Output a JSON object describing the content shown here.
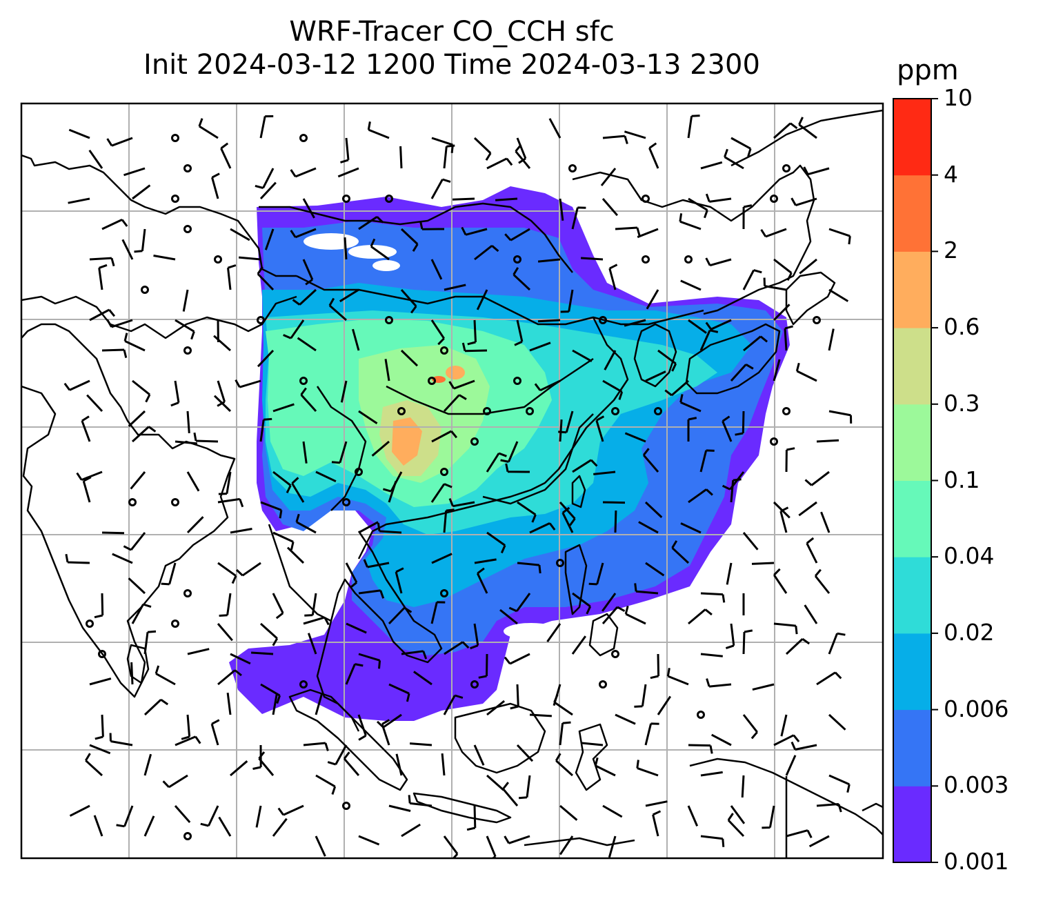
{
  "title": {
    "line1": "WRF-Tracer CO_CCH sfc",
    "line2": "Init 2024-03-12 1200 Time 2024-03-13 2300"
  },
  "colorbar": {
    "unit": "ppm",
    "levels": [
      "0.001",
      "0.003",
      "0.006",
      "0.02",
      "0.04",
      "0.1",
      "0.3",
      "0.6",
      "2",
      "4",
      "10"
    ],
    "colors": [
      "#6a2bff",
      "#3575f5",
      "#06aee8",
      "#2fdcd8",
      "#66f9b9",
      "#9cf99a",
      "#cddf8a",
      "#ffad5d",
      "#ff7236",
      "#ff2a14"
    ]
  },
  "map": {
    "fields": "CO_CCH surface concentration with wind barbs",
    "gridlines": true,
    "colors": {
      "coast": "#000000",
      "grid": "#b0b0b0",
      "frame": "#000000"
    }
  }
}
